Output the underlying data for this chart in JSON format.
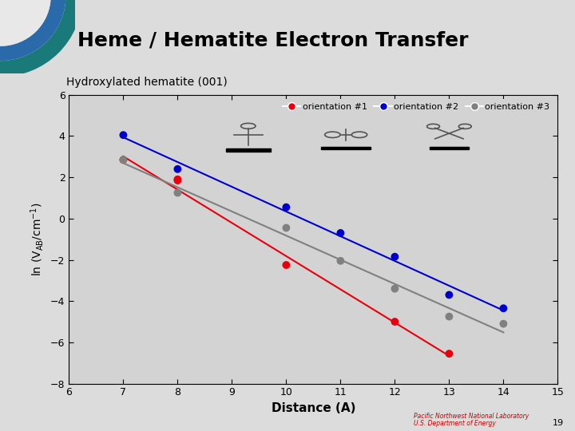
{
  "title": "Heme / Hematite Electron Transfer",
  "subtitle": "Hydroxylated hematite (001)",
  "xlabel": "Distance (A)",
  "xlim": [
    6,
    15
  ],
  "ylim": [
    -8,
    6
  ],
  "xticks": [
    6,
    7,
    8,
    9,
    10,
    11,
    12,
    13,
    14,
    15
  ],
  "yticks": [
    -8,
    -6,
    -4,
    -2,
    0,
    2,
    4,
    6
  ],
  "bg_color": "#dcdcdc",
  "plot_bg_color": "#d3d3d3",
  "header_bg": "#e8e8e8",
  "orientation1": {
    "x": [
      7,
      8,
      8,
      10,
      12,
      13
    ],
    "y": [
      2.85,
      1.85,
      1.9,
      -2.25,
      -5.0,
      -6.55
    ],
    "color": "#e8000d",
    "label": "orientation #1"
  },
  "orientation2": {
    "x": [
      7,
      8,
      10,
      11,
      12,
      13,
      14
    ],
    "y": [
      4.05,
      2.4,
      0.55,
      -0.7,
      -1.85,
      -3.7,
      -4.35
    ],
    "color": "#0000cc",
    "label": "orientation #2"
  },
  "orientation3": {
    "x": [
      7,
      8,
      10,
      11,
      12,
      13,
      14
    ],
    "y": [
      2.85,
      1.25,
      -0.45,
      -2.05,
      -3.4,
      -4.75,
      -5.1
    ],
    "color": "#808080",
    "label": "orientation #3"
  },
  "teal_color": "#1a7a7a",
  "blue_color": "#2a6aaa",
  "page_num": "19"
}
